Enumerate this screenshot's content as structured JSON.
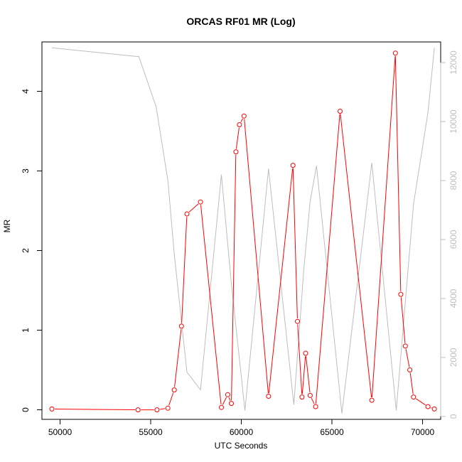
{
  "chart_data": {
    "type": "line",
    "title": "ORCAS RF01 MR (Log)",
    "xlabel": "UTC Seconds",
    "ylabel": "MR",
    "xlim": [
      49000,
      71000
    ],
    "ylim": [
      -0.12,
      4.62
    ],
    "y2lim": [
      -100,
      12700
    ],
    "x_ticks": [
      50000,
      55000,
      60000,
      65000,
      70000
    ],
    "y_ticks": [
      0,
      1,
      2,
      3,
      4
    ],
    "y2_ticks": [
      0,
      2000,
      4000,
      6000,
      8000,
      10000,
      12000
    ],
    "colors": {
      "primary": "#ff0000",
      "secondary": "#bebebe"
    },
    "series": [
      {
        "axis": "left",
        "style": "line+points",
        "points": [
          [
            49550,
            0.01
          ],
          [
            54300,
            0.0
          ],
          [
            55350,
            0.0
          ],
          [
            55950,
            0.02
          ],
          [
            56300,
            0.25
          ],
          [
            56700,
            1.05
          ],
          [
            57000,
            2.46
          ],
          [
            57750,
            2.61
          ],
          [
            58900,
            0.03
          ],
          [
            59250,
            0.19
          ],
          [
            59450,
            0.08
          ],
          [
            59700,
            3.24
          ],
          [
            59900,
            3.58
          ],
          [
            60150,
            3.69
          ],
          [
            61500,
            0.17
          ],
          [
            62850,
            3.07
          ],
          [
            63100,
            1.11
          ],
          [
            63350,
            0.16
          ],
          [
            63550,
            0.71
          ],
          [
            63800,
            0.18
          ],
          [
            64100,
            0.04
          ],
          [
            65450,
            3.75
          ],
          [
            67200,
            0.12
          ],
          [
            68500,
            4.48
          ],
          [
            68800,
            1.45
          ],
          [
            69050,
            0.8
          ],
          [
            69300,
            0.5
          ],
          [
            69500,
            0.16
          ],
          [
            70300,
            0.04
          ],
          [
            70650,
            0.01
          ]
        ]
      },
      {
        "axis": "right",
        "style": "line",
        "points": [
          [
            49550,
            12500
          ],
          [
            54350,
            12200
          ],
          [
            55300,
            10500
          ],
          [
            55950,
            8000
          ],
          [
            56300,
            5500
          ],
          [
            57000,
            1500
          ],
          [
            57750,
            900
          ],
          [
            58900,
            8200
          ],
          [
            59450,
            4500
          ],
          [
            60200,
            200
          ],
          [
            61500,
            8400
          ],
          [
            62900,
            400
          ],
          [
            63450,
            5000
          ],
          [
            63800,
            7300
          ],
          [
            64150,
            8500
          ],
          [
            65550,
            100
          ],
          [
            67200,
            8600
          ],
          [
            68550,
            200
          ],
          [
            69500,
            7200
          ],
          [
            70300,
            10300
          ],
          [
            70650,
            12500
          ]
        ]
      }
    ]
  }
}
